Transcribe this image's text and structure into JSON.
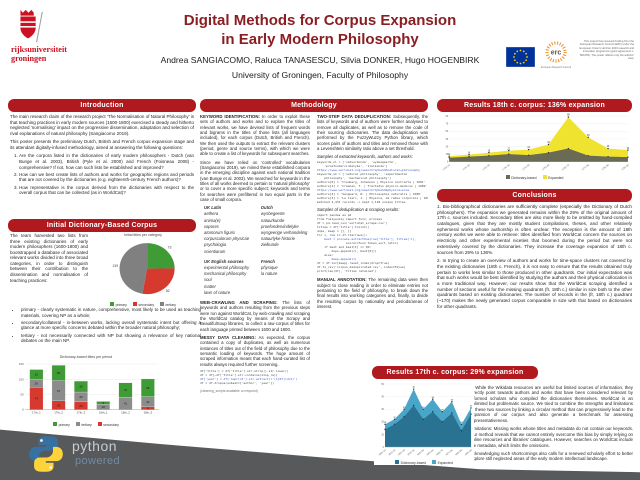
{
  "header": {
    "logo1": "rijksuniversiteit",
    "logo2": "groningen",
    "title1": "Digital Methods for Corpus Expansion",
    "title2": "in Early Modern Philosophy",
    "authors": "Andrea SANGIACOMO, Raluca TANASESCU, Silvia DONKER, Hugo HOGENBIRK",
    "affiliation": "University of Groningen, Faculty of Philosophy",
    "erc": "erc",
    "erc_sub": "European Research Council",
    "funding": "This project has received funding from the European Research Council (ERC) under the European Union's Horizon 2020 research and innovation programme (grant agreement n. 801653). The poster reflects only the authors' view."
  },
  "intro": {
    "heading": "Introduction",
    "p1": "The main research claim of the research project 'The Normalisation of Natural Philosophy' is that teaching practices in early modern sources (1600-1800) exercised a steady and hitherto neglected 'normalising' impact on the progressive dissemination, adaptation and selection of rival explanations of natural philosophy (Sangiacomo 2019).",
    "p2": "This poster presents the preliminary Dutch, British and French corpus expansion stage and its attendant digitally-infused methodology, aimed at answering the following questions:",
    "questions": [
      "Are the corpora listed in the dictionaries of early modern philosophers - Dutch (van Bunge et al. 2003), British (Pyle et al. 2000) and French (Foisneau 2008) - comprehensive? If not, how can such lists be established and improved?",
      "How can we best create lists of authors and works for geographic regions and periods that are not covered by the dictionaries (e.g. eighteenth-century French authors)?",
      "How representative is the corpus derived from the dictionaries with respect to the overall corpus that can be collected (as in WorldCat)?"
    ]
  },
  "initial": {
    "heading": "Initial Dictionary-Based Corpus",
    "text": "The team harvested two lists from three existing dictionaries of early modern philosophers (1600-1800) and bootstrapped a database of associated relevant works divided into three broad categories, in order to distinguish between their contribution to the dissemination and normalisation of teaching practices:",
    "bullets": [
      "primary - clearly systematic in nature, comprehensive, most likely to be used as teaching materials, covering NP as a whole;",
      "secondary/collateral - in-between works, lacking overall systematic intent but offering a glance at more specific concerns debated within the broader natural philosophy;",
      "tertiary - not necessarily connected with NP but showing a relevance of key national debates on the main NP."
    ]
  },
  "meth": {
    "heading": "Methodology",
    "kw_label": "KEYWORD IDENTIFICATION:",
    "kw_p1": "In order to exploit these sets of authors and works and to explore the titles of relevant works, we have devised lists of frequent words and bigrams in the titles of those lists (all languages included), for each corpus (Dutch, British and French). We then used the outputs to extract the relevant clusters (period, genre and source terms), with which we were able to create a list of keywords for subsequent searches.",
    "kw_p2": "Since we have relied on 'controlled' vocabularies (Sangiacomo 2019), we mined these established corpora in the emerging discipline against each national tradition (van Bunge et al. 2003). We searched for keywords in the titles of all works deemed to pertain to 'natural philosophy' or to cover a more specific subject; keywords and terms for searches were prefiltered in two equal parts in the case of small corpora.",
    "sample_caption": "Samples of extracted keywords, authors and works:",
    "code1": [
      "keywords_nl = ['natuurkunde', 'wysbegeerte',",
      "    'proefondervindelyke', 'zielkunde']",
      "https://www.worldcat.org/search?q=kw%3Anatural+philosophy",
      "keywords_uk = ['natural philosophy', 'experimental",
      "    philosophy', 'mechanical philosophy']",
      "authors[0] = 'Clauberg, Johannes | Physica contracta | 1681'",
      "authors[1] = 'Craanen, T. | Tractatus physico-medicus | 1689'",
      "https://www.worldcat.org/search?q=kw%3Aphysica+sive",
      "authors[2] = 'Senguerd, W. | Philosophia naturalis | 1680'",
      "authors[3] = 'Le Clerc, J. | Physica, de rebus corporeis | 1696'",
      "matched 2,431 records -> kept 1,118 unique titles"
    ],
    "t1h1": "UK Latin",
    "t1h2": "Dutch",
    "t1c1": [
      "aethera",
      "anima(e)",
      "vapores",
      "atomorum figuris",
      "corpusculorum physicae",
      "psychologia",
      "scientiarum"
    ],
    "t1c2": [
      "wysbegeerte",
      "natuurkunde",
      "proefondervindelyke",
      "wysgeerige verhandeling",
      "natuurlyke historie",
      "zielkunde"
    ],
    "t2h1": "UK English sources",
    "t2h2": "French",
    "t2c1": [
      "experimental philosophy",
      "mechanical philosophy",
      "soul",
      "matter",
      "laws of nature"
    ],
    "t2c2": [
      "physique",
      "la nature"
    ],
    "dd_label": "TWO-STEP DATA DEDUPLICATION:",
    "dd_text": "Subsequently, the lists of keywords and of authors were further analysed to remove all duplicates, as well as to remove the code of their sourcing dictionaries. The data deduplication was performed by the FuzzyWuzzy Python library, which scores pairs of authors and titles and removed those with a Levenshtein similarity ratio above a set threshold.",
    "code2_caption": "Samples of deduplication & scraping results:",
    "code2": [
      "import pandas as pd",
      "from fuzzywuzzy import fuzz, process",
      "",
      "df = pd.read_csv('worldcat_scrape.csv')",
      "titles = df['title'].tolist()",
      "dups, keep = [], []",
      "for i, row in df.iterrows():",
      "    best = process.extractOne(row['title'], titles[:i],",
      "                scorer=fuzz.token_sort_ratio)",
      "    if best and best[1] >= 90:",
      "        dups.append((i, best[0]))",
      "    else:",
      "        keep.append(i)",
      "",
      "df = df.loc[keep].reset_index(drop=True)",
      "df.to_csv('corpus_deduplicated.csv', index=False)",
      "print(len(df), 'titles retained')"
    ],
    "wc_label": "WEB-CRAWLING AND SCRAPING:",
    "wc_text": "The lists of keywords and authors resulting from the previous steps were run against WorldCat, by web-crawling and scraping the WorldCat catalog by means of the Scrapy and BeautifulSoup libraries, to collect a raw corpus of titles for each language printed between 1600 and 1800.",
    "md_label": "MESSY DATA CLEANING:",
    "md_text": "As expected, the corpus contained a copy of duplicates, as well as numerous instances of titles out of the field of philosophy due to the semantic loading of keywords. The huge amount of scraped information meant that each hand-curated list of results always required further screening.",
    "md_code": [
      "df['title'] = df['title'].str.strip().str.lower()",
      "df = df[~df['title'].str.contains(stop_re)]",
      "df['year'] = df['imprint'].str.extract(r'(1[67]\\d\\d)')",
      "df = df.dropna(subset=['author', 'year'])"
    ],
    "md_note": "(cleaning_scripts available on request)",
    "ma_label": "MANUAL ANNOTATION:",
    "ma_text": "The remaining data were then subject to close reading in order to eliminate entries not pertaining to the field of philosophy, to break down the final results into working categories and, finally, to divide the resulting corpus by nationality and periods/areas of interest."
  },
  "r17": {
    "heading": "Results 17th c. corpus: 29% expansion"
  },
  "r18": {
    "heading": "Results 18th c. corpus: 136% expansion"
  },
  "concl": {
    "heading": "Conclusions",
    "p1": "1. Bio-bibliographical dictionaries are sufficiently complete (especially the Dictionary of Dutch philosophers). The expansion we generated remains within the 29% of the original amount of 17th c. sources included. Secondary titles are also more likely to be omitted by hand-compiled catalogues, given that they are mostly student compilations, theses, and other relatively ephemeral works whose authorship is often unclear. The exception is the amount of 18th century works we were able to retrieve: titles identified from WorldCat concern the sources on electricity and other experimental niceties that boomed during the period but were not extensively covered by the dictionaries. They increase the coverage expansion of 18th c. sources from 29% to 136%.",
    "p2": "2. In trying to create an overview of authors and works for time-space clusters not covered by the existing dictionaries (18th c. French), it is not easy to ensure that the results obtained truly pertain to works less similar to those produced in other quadrants. Our initial expectation was that such works would be best identified by studying the authors and their physical collocation in a more traditional way. However, our results show that the WorldCat scraping identified a number of sections useful for the missing quadrants (fr, 18th c.) similar in size both to the other quadrants based on existing dictionaries. The number of records in the (fr, 18th c.) quadrant (~170) makes the newly generated corpus comparable in size with that based on dictionaries for other quadrants.",
    "p3": "3. While the Wikidata resources are useful but limited sources of information, they directly point towards authors and works that have been considered relevant by informed scholars who compiled the dictionaries themselves. WorldCat is an unlimited but problematic source. We tried to combine the strengths and limitations of these two sources by linking a circular method that can progressively lead to the expansion of our corpus and also generate a benchmark for assessing representativeness.",
    "p4": "Limitations: Missing works whose titles and metadata do not contain our keywords. Our method reveals that we cannot entirely overcome this bias by simply relying on online resources and libraries' catalogues. However, searches on WorldCat include the metadata, which limits the omissions.",
    "p5": "Acknowledging such shortcomings also calls for a renewed scholarly effort to better explore still neglected areas of the early modern intellectual landscape."
  },
  "footer": {
    "python1": "python",
    "python2": "powered"
  },
  "chart_data": [
    {
      "type": "pie",
      "title": "Initial titles per category",
      "labels": [
        "primary",
        "secondary",
        "tertiary"
      ],
      "values": [
        73,
        82,
        139
      ],
      "colors": [
        "#3f9b35",
        "#d6392e",
        "#808080"
      ],
      "legend_position": "bottom"
    },
    {
      "type": "bar",
      "stacked": true,
      "title": "Dictionary-based titles per period",
      "categories": [
        "17th_1",
        "17th_2",
        "17th_3",
        "18th_1",
        "18th_2",
        "18th_3"
      ],
      "ylim": [
        0,
        150
      ],
      "yticks": [
        0,
        50,
        100,
        150
      ],
      "series": [
        {
          "name": "secondary",
          "color": "#d6392e",
          "values": [
            74,
            29,
            26,
            0,
            0,
            9
          ]
        },
        {
          "name": "tertiary",
          "color": "#8c8c8c",
          "values": [
            26,
            67,
            32,
            18,
            41,
            34
          ]
        },
        {
          "name": "primary",
          "color": "#3f9b35",
          "values": [
            32,
            50,
            36,
            9,
            47,
            58
          ]
        }
      ]
    },
    {
      "type": "area",
      "title": "Results 17th c. corpus: 29% expansion",
      "categories": [
        "1601-10",
        "1611-20",
        "1621-30",
        "1631-40",
        "1641-50",
        "1651-60",
        "1661-70",
        "1671-80",
        "1681-90",
        "1691-00"
      ],
      "ylim": [
        0,
        50
      ],
      "yticks": [
        0,
        10,
        20,
        30,
        40,
        50
      ],
      "series": [
        {
          "name": "Expanded",
          "color": "#4aa6c9",
          "values": [
            18,
            22,
            30,
            46,
            30,
            38,
            28,
            36,
            18,
            31
          ]
        },
        {
          "name": "Dictionary-based",
          "color": "#2a7292",
          "values": [
            14,
            18,
            24,
            33,
            22,
            28,
            20,
            27,
            13,
            26
          ]
        }
      ],
      "legend": [
        "Dictionary-based",
        "Expanded"
      ]
    },
    {
      "type": "area",
      "title": "Results 18th c. corpus: 136% expansion",
      "categories": [
        "1701-10",
        "1711-20",
        "1721-30",
        "1731-40",
        "1741-50",
        "1751-60",
        "1761-70",
        "1771-80",
        "1781-90",
        "1791-00"
      ],
      "ylim": [
        0,
        90
      ],
      "yticks": [
        0,
        15,
        30,
        45,
        60,
        75,
        90
      ],
      "series": [
        {
          "name": "Expanded",
          "color": "#f0e32f",
          "values": [
            11,
            14,
            18,
            22,
            24,
            34,
            88,
            48,
            26,
            23
          ]
        },
        {
          "name": "Dictionary-based",
          "color": "#6b6a54",
          "values": [
            8,
            10,
            12,
            15,
            13,
            18,
            26,
            12,
            10,
            9
          ]
        }
      ],
      "legend": [
        "Dictionary-based",
        "Expanded"
      ]
    }
  ]
}
